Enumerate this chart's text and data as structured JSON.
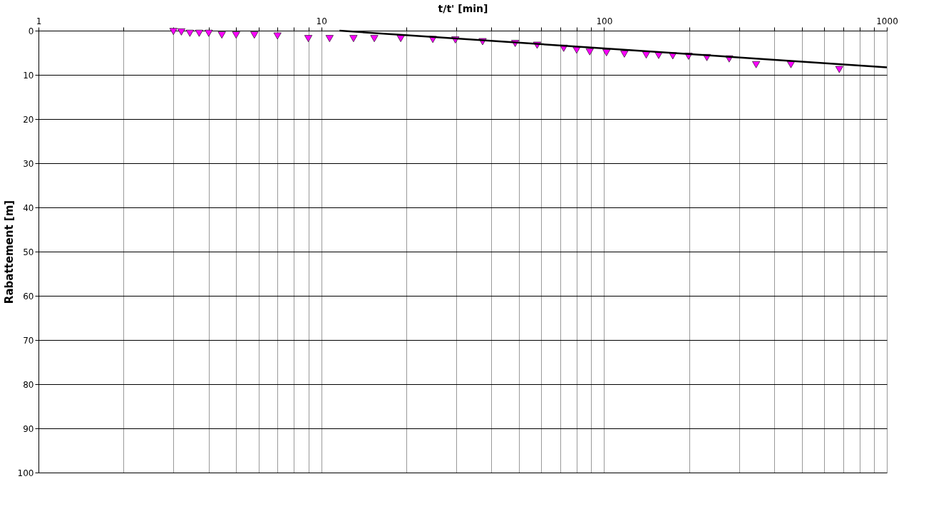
{
  "chart_data": {
    "type": "scatter",
    "xlabel": "t/t' [min]",
    "ylabel": "Rabattement [m]",
    "log": "x",
    "xlim": [
      1,
      1000
    ],
    "ylim": [
      100,
      0
    ],
    "xticks": [
      1,
      {
        "value": 2,
        "label": null
      },
      {
        "value": 3,
        "label": null
      },
      {
        "value": 4,
        "label": null
      },
      {
        "value": 5,
        "label": null
      },
      {
        "value": 6,
        "label": null
      },
      {
        "value": 7,
        "label": null
      },
      {
        "value": 8,
        "label": null
      },
      {
        "value": 9,
        "label": null
      },
      10,
      {
        "value": 20,
        "label": null
      },
      {
        "value": 30,
        "label": null
      },
      {
        "value": 40,
        "label": null
      },
      {
        "value": 50,
        "label": null
      },
      {
        "value": 60,
        "label": null
      },
      {
        "value": 70,
        "label": null
      },
      {
        "value": 80,
        "label": null
      },
      {
        "value": 90,
        "label": null
      },
      100,
      {
        "value": 200,
        "label": null
      },
      {
        "value": 300,
        "label": null
      },
      {
        "value": 400,
        "label": null
      },
      {
        "value": 500,
        "label": null
      },
      {
        "value": 600,
        "label": null
      },
      {
        "value": 700,
        "label": null
      },
      {
        "value": 800,
        "label": null
      },
      {
        "value": 900,
        "label": null
      },
      1000
    ],
    "yticks": [
      0,
      10,
      20,
      30,
      40,
      50,
      60,
      70,
      80,
      90,
      100
    ],
    "grid": true,
    "series": [
      {
        "type": "scatter",
        "marker": "triangle",
        "color": "#ff00ff",
        "x": [
          3.0,
          3.2,
          3.43,
          3.7,
          4.0,
          4.45,
          5.0,
          5.8,
          7.0,
          9.0,
          10.7,
          13.0,
          15.4,
          19.1,
          24.8,
          29.8,
          37.2,
          48.5,
          58,
          72,
          80,
          89,
          102,
          118,
          141,
          156,
          175,
          199,
          231,
          277,
          345,
          458,
          679
        ],
        "values": [
          0.2,
          0.3,
          0.6,
          0.6,
          0.6,
          1.0,
          1.0,
          1.0,
          1.2,
          1.8,
          1.8,
          1.8,
          1.8,
          1.8,
          2.0,
          2.1,
          2.5,
          2.9,
          3.3,
          4.0,
          4.4,
          4.8,
          5.0,
          5.3,
          5.5,
          5.6,
          5.7,
          5.8,
          6.1,
          6.4,
          7.7,
          7.7,
          8.8
        ]
      },
      {
        "type": "line",
        "marker": "none",
        "line_style": "solid",
        "color": "#000000",
        "x": [
          11.6,
          1000
        ],
        "values": [
          0,
          8.3
        ]
      }
    ]
  }
}
